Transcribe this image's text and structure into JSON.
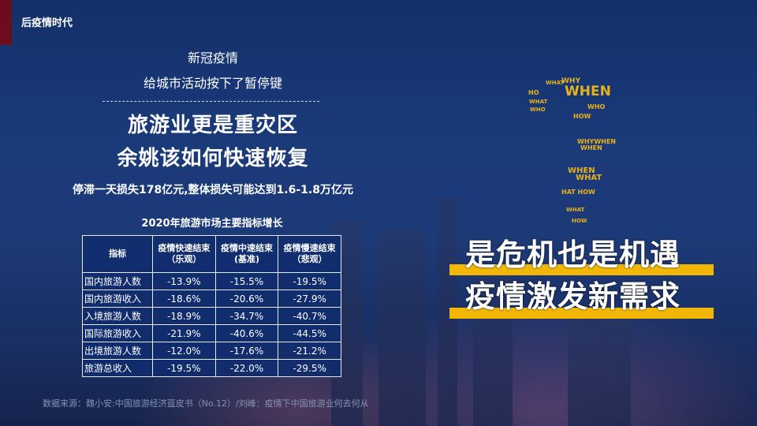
{
  "section_title": "后疫情时代",
  "intro": {
    "line1": "新冠疫情",
    "line2": "给城市活动按下了暂停键"
  },
  "headline": {
    "line1": "旅游业更是重灾区",
    "line2": "余姚该如何快速恢复"
  },
  "loss_note": "停滞一天损失178亿元,整体损失可能达到1.6-1.8万亿元",
  "table": {
    "title": "2020年旅游市场主要指标增长",
    "headers": [
      "指标",
      "疫情快速结束\n（乐观）",
      "疫情中速结束\n(基准)",
      "疫情慢速结束\n（悲观）"
    ],
    "rows": [
      [
        "国内旅游人数",
        "-13.9%",
        "-15.5%",
        "-19.5%"
      ],
      [
        "国内旅游收入",
        "-18.6%",
        "-20.6%",
        "-27.9%"
      ],
      [
        "入境旅游人数",
        "-18.9%",
        "-34.7%",
        "-40.7%"
      ],
      [
        "国际旅游收入",
        "-21.9%",
        "-40.6%",
        "-44.5%"
      ],
      [
        "出境旅游人数",
        "-12.0%",
        "-17.6%",
        "-21.2%"
      ],
      [
        "旅游总收入",
        "-19.5%",
        "-22.0%",
        "-29.5%"
      ]
    ]
  },
  "source": "数据来源：魏小安:中国旅游经济蓝皮书（No.12）/刘峰：疫情下中国旅游业何去何从",
  "slogan": {
    "line1": "是危机也是机遇",
    "line2": "疫情激发新需求"
  },
  "question_mark_words": [
    "WHAT",
    "WHY",
    "WHEN",
    "HO",
    "WHAT",
    "WHO",
    "WHO",
    "HOW",
    "WHEN",
    "WHYWHEN",
    "WHEN",
    "WHAT",
    "HAT HOW",
    "WHAT",
    "HOW"
  ],
  "colors": {
    "accent_bar": "#6b0d1d",
    "highlight": "#f2b705",
    "word_cloud": "#e8b21a",
    "table_bg": "#102c6e"
  }
}
